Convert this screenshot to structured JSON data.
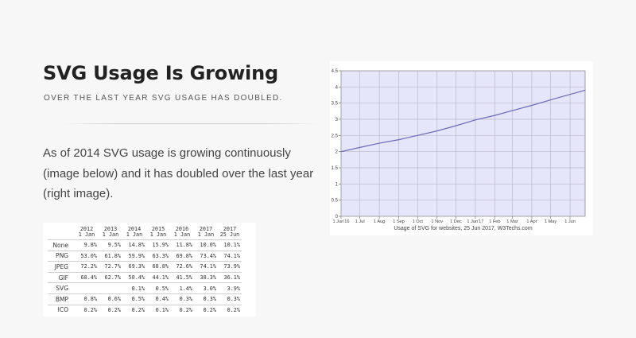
{
  "header": {
    "title": "SVG Usage Is Growing",
    "subtitle": "OVER THE LAST YEAR SVG USAGE HAS DOUBLED."
  },
  "body_text": "As of 2014 SVG usage is growing continuously (image below) and it has doubled over the last year (right image).",
  "table": {
    "columns": [
      {
        "year": "2012",
        "date": "1 Jan"
      },
      {
        "year": "2013",
        "date": "1 Jan"
      },
      {
        "year": "2014",
        "date": "1 Jan"
      },
      {
        "year": "2015",
        "date": "1 Jan"
      },
      {
        "year": "2016",
        "date": "1 Jan"
      },
      {
        "year": "2017",
        "date": "1 Jan"
      },
      {
        "year": "2017",
        "date": "25 Jun"
      }
    ],
    "rows": [
      {
        "format": "None",
        "values": [
          "9.8%",
          "9.5%",
          "14.8%",
          "15.9%",
          "11.8%",
          "10.0%",
          "10.1%"
        ]
      },
      {
        "format": "PNG",
        "values": [
          "53.0%",
          "61.8%",
          "59.9%",
          "63.3%",
          "69.8%",
          "73.4%",
          "74.1%"
        ]
      },
      {
        "format": "JPEG",
        "values": [
          "72.2%",
          "72.7%",
          "69.3%",
          "68.8%",
          "72.6%",
          "74.1%",
          "73.9%"
        ]
      },
      {
        "format": "GIF",
        "values": [
          "68.4%",
          "62.7%",
          "50.4%",
          "44.1%",
          "41.5%",
          "38.3%",
          "36.1%"
        ]
      },
      {
        "format": "SVG",
        "values": [
          "",
          "",
          "0.1%",
          "0.5%",
          "1.4%",
          "3.0%",
          "3.9%"
        ]
      },
      {
        "format": "BMP",
        "values": [
          "0.8%",
          "0.6%",
          "0.5%",
          "0.4%",
          "0.3%",
          "0.3%",
          "0.3%"
        ]
      },
      {
        "format": "ICO",
        "values": [
          "0.2%",
          "0.2%",
          "0.2%",
          "0.1%",
          "0.2%",
          "0.2%",
          "0.2%"
        ]
      }
    ]
  },
  "chart_data": {
    "type": "area",
    "title": "Usage of SVG for websites, 25 Jun 2017, W3Techs.com",
    "xlabel": "",
    "ylabel": "",
    "ylim": [
      0,
      4.5
    ],
    "yticks": [
      "0",
      "0.5",
      "1",
      "1.5",
      "2",
      "2.5",
      "3",
      "3.5",
      "4",
      "4.5"
    ],
    "xticks": [
      "1 Jun'16",
      "1 Jul",
      "1 Aug",
      "1 Sep",
      "1 Oct",
      "1 Nov",
      "1 Dec",
      "1 Jan'17",
      "1 Feb",
      "1 Mar",
      "1 Apr",
      "1 May",
      "1 Jun"
    ],
    "x": [
      "2016-06-01",
      "2016-07-01",
      "2016-08-01",
      "2016-09-01",
      "2016-10-01",
      "2016-11-01",
      "2016-12-01",
      "2017-01-01",
      "2017-02-01",
      "2017-03-01",
      "2017-04-01",
      "2017-05-01",
      "2017-06-01",
      "2017-06-25"
    ],
    "series": [
      {
        "values": [
          2.0,
          2.13,
          2.26,
          2.37,
          2.5,
          2.64,
          2.8,
          2.98,
          3.12,
          3.27,
          3.43,
          3.6,
          3.77,
          3.9
        ]
      }
    ],
    "grid": true,
    "line_color": "#6a6ab8",
    "fill_color": "#e6e6fa"
  }
}
